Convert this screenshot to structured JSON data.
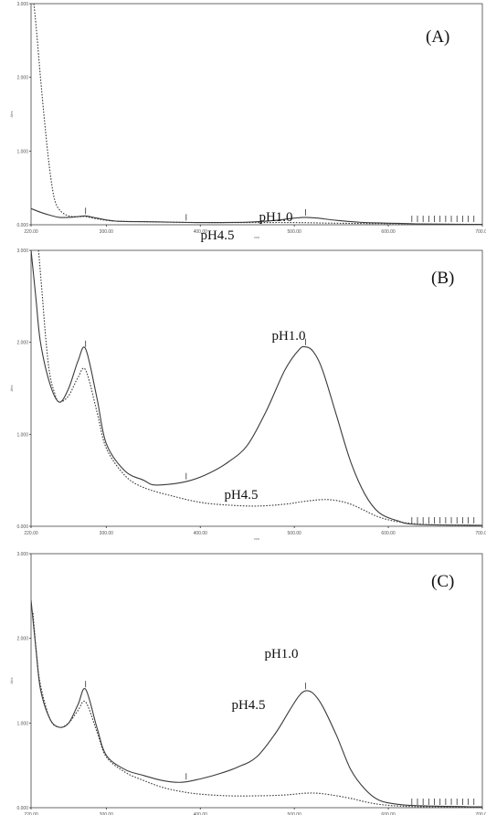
{
  "chart_data": [
    {
      "type": "line",
      "label": "(A)",
      "xlabel": "nm",
      "ylabel": "Abs",
      "xlim": [
        220,
        700
      ],
      "ylim": [
        0,
        3
      ],
      "xticks": [
        "220.00",
        "300.00",
        "400.00",
        "500.00",
        "600.00",
        "700.00"
      ],
      "yticks": [
        "0.000",
        "1.000",
        "2.000",
        "3.000"
      ],
      "series": [
        {
          "name": "pH1.0",
          "style": "solid",
          "x": [
            220,
            230,
            240,
            250,
            260,
            270,
            278,
            290,
            310,
            350,
            400,
            450,
            480,
            500,
            512,
            525,
            545,
            575,
            610,
            640,
            700
          ],
          "y": [
            0.22,
            0.17,
            0.13,
            0.1,
            0.1,
            0.11,
            0.12,
            0.09,
            0.05,
            0.04,
            0.03,
            0.035,
            0.06,
            0.09,
            0.1,
            0.09,
            0.06,
            0.03,
            0.02,
            0.01,
            0.005
          ]
        },
        {
          "name": "pH4.5",
          "style": "dotted",
          "x": [
            223,
            226,
            230,
            234,
            238,
            242,
            246,
            252,
            260,
            270,
            278,
            290,
            310,
            350,
            400,
            450,
            500,
            550,
            600,
            640,
            700
          ],
          "y": [
            3.0,
            2.6,
            2.0,
            1.45,
            0.95,
            0.55,
            0.3,
            0.18,
            0.12,
            0.11,
            0.11,
            0.08,
            0.05,
            0.04,
            0.03,
            0.03,
            0.03,
            0.02,
            0.015,
            0.01,
            0.005
          ]
        }
      ]
    },
    {
      "type": "line",
      "label": "(B)",
      "xlabel": "nm",
      "ylabel": "Abs",
      "xlim": [
        220,
        700
      ],
      "ylim": [
        0,
        3
      ],
      "xticks": [
        "220.00",
        "300.00",
        "400.00",
        "500.00",
        "600.00",
        "700.00"
      ],
      "yticks": [
        "0.000",
        "1.000",
        "2.000",
        "3.000"
      ],
      "series": [
        {
          "name": "pH1.0",
          "style": "solid",
          "x": [
            220,
            225,
            230,
            240,
            250,
            260,
            270,
            278,
            290,
            300,
            320,
            340,
            350,
            370,
            390,
            410,
            430,
            450,
            470,
            490,
            505,
            512,
            520,
            530,
            545,
            560,
            575,
            590,
            610,
            630,
            700
          ],
          "y": [
            3.0,
            2.5,
            2.0,
            1.55,
            1.35,
            1.5,
            1.8,
            1.93,
            1.4,
            0.9,
            0.6,
            0.5,
            0.45,
            0.46,
            0.5,
            0.58,
            0.7,
            0.88,
            1.25,
            1.7,
            1.92,
            1.95,
            1.9,
            1.7,
            1.2,
            0.7,
            0.35,
            0.15,
            0.06,
            0.02,
            0.01
          ]
        },
        {
          "name": "pH4.5",
          "style": "dotted",
          "x": [
            228,
            232,
            236,
            240,
            245,
            250,
            260,
            270,
            278,
            290,
            300,
            320,
            340,
            370,
            400,
            430,
            460,
            490,
            510,
            530,
            545,
            560,
            575,
            590,
            610,
            640,
            700
          ],
          "y": [
            3.0,
            2.5,
            2.0,
            1.65,
            1.45,
            1.35,
            1.42,
            1.62,
            1.7,
            1.25,
            0.85,
            0.55,
            0.42,
            0.33,
            0.26,
            0.23,
            0.22,
            0.24,
            0.27,
            0.29,
            0.28,
            0.24,
            0.17,
            0.1,
            0.05,
            0.02,
            0.01
          ]
        }
      ]
    },
    {
      "type": "line",
      "label": "(C)",
      "xlabel": "nm",
      "ylabel": "Abs",
      "xlim": [
        220,
        700
      ],
      "ylim": [
        0,
        3
      ],
      "xticks": [
        "220.00",
        "300.00",
        "400.00",
        "500.00",
        "600.00",
        "700.00"
      ],
      "yticks": [
        "0.000",
        "1.000",
        "2.000",
        "3.000"
      ],
      "series": [
        {
          "name": "pH1.0",
          "style": "solid",
          "x": [
            220,
            225,
            230,
            240,
            250,
            260,
            270,
            278,
            290,
            300,
            320,
            340,
            360,
            380,
            400,
            420,
            440,
            460,
            480,
            495,
            505,
            512,
            520,
            530,
            545,
            560,
            575,
            590,
            610,
            640,
            700
          ],
          "y": [
            2.45,
            1.9,
            1.4,
            1.05,
            0.95,
            1.0,
            1.22,
            1.4,
            0.95,
            0.62,
            0.45,
            0.38,
            0.32,
            0.3,
            0.34,
            0.4,
            0.48,
            0.6,
            0.88,
            1.15,
            1.32,
            1.38,
            1.35,
            1.2,
            0.85,
            0.45,
            0.22,
            0.09,
            0.04,
            0.02,
            0.01
          ]
        },
        {
          "name": "pH4.5",
          "style": "dotted",
          "x": [
            222,
            226,
            230,
            240,
            250,
            260,
            270,
            278,
            290,
            300,
            320,
            340,
            360,
            380,
            400,
            430,
            460,
            490,
            510,
            525,
            540,
            560,
            575,
            590,
            610,
            640,
            700
          ],
          "y": [
            2.3,
            1.8,
            1.45,
            1.05,
            0.95,
            1.0,
            1.15,
            1.25,
            0.9,
            0.6,
            0.42,
            0.32,
            0.24,
            0.19,
            0.16,
            0.14,
            0.14,
            0.15,
            0.17,
            0.17,
            0.15,
            0.11,
            0.07,
            0.04,
            0.02,
            0.01,
            0.005
          ]
        }
      ]
    }
  ]
}
